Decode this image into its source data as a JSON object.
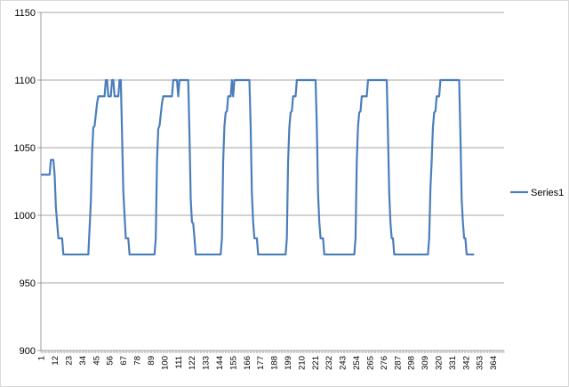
{
  "chart_data": {
    "type": "line",
    "title": "",
    "xlabel": "",
    "ylabel": "",
    "ylim": [
      900,
      1150
    ],
    "yticks": [
      900,
      950,
      1000,
      1050,
      1100,
      1150
    ],
    "xlim": [
      1,
      372
    ],
    "xticks": [
      1,
      12,
      23,
      34,
      45,
      56,
      67,
      78,
      89,
      100,
      111,
      122,
      133,
      144,
      155,
      166,
      177,
      188,
      199,
      210,
      221,
      232,
      243,
      254,
      265,
      276,
      287,
      298,
      309,
      320,
      331,
      342,
      353,
      364
    ],
    "grid": "horizontal",
    "legend": "right",
    "series": [
      {
        "name": "Series1",
        "color": "#4a7ebb",
        "points": [
          [
            1,
            1030
          ],
          [
            8,
            1030
          ],
          [
            9,
            1041
          ],
          [
            11,
            1041
          ],
          [
            12,
            1030
          ],
          [
            13,
            1006
          ],
          [
            15,
            983
          ],
          [
            18,
            983
          ],
          [
            19,
            971
          ],
          [
            36,
            971
          ],
          [
            39,
            971
          ],
          [
            41,
            1010
          ],
          [
            42,
            1046
          ],
          [
            43,
            1065
          ],
          [
            44,
            1066
          ],
          [
            46,
            1083
          ],
          [
            47,
            1088
          ],
          [
            52,
            1088
          ],
          [
            53,
            1100
          ],
          [
            54,
            1100
          ],
          [
            55,
            1088
          ],
          [
            57,
            1088
          ],
          [
            58,
            1100
          ],
          [
            59,
            1100
          ],
          [
            60,
            1088
          ],
          [
            63,
            1088
          ],
          [
            64,
            1100
          ],
          [
            65,
            1100
          ],
          [
            66,
            1060
          ],
          [
            67,
            1018
          ],
          [
            68,
            1000
          ],
          [
            69,
            983
          ],
          [
            71,
            983
          ],
          [
            72,
            971
          ],
          [
            92,
            971
          ],
          [
            93,
            983
          ],
          [
            94,
            1040
          ],
          [
            95,
            1064
          ],
          [
            96,
            1066
          ],
          [
            98,
            1083
          ],
          [
            99,
            1088
          ],
          [
            106,
            1088
          ],
          [
            107,
            1100
          ],
          [
            110,
            1100
          ],
          [
            111,
            1088
          ],
          [
            112,
            1100
          ],
          [
            119,
            1100
          ],
          [
            120,
            1060
          ],
          [
            121,
            1012
          ],
          [
            122,
            995
          ],
          [
            123,
            994
          ],
          [
            124,
            983
          ],
          [
            125,
            971
          ],
          [
            145,
            971
          ],
          [
            146,
            983
          ],
          [
            147,
            1040
          ],
          [
            148,
            1066
          ],
          [
            149,
            1076
          ],
          [
            150,
            1077
          ],
          [
            151,
            1088
          ],
          [
            153,
            1088
          ],
          [
            154,
            1100
          ],
          [
            155,
            1088
          ],
          [
            156,
            1100
          ],
          [
            168,
            1100
          ],
          [
            169,
            1066
          ],
          [
            170,
            1016
          ],
          [
            171,
            995
          ],
          [
            172,
            983
          ],
          [
            174,
            983
          ],
          [
            175,
            971
          ],
          [
            197,
            971
          ],
          [
            198,
            983
          ],
          [
            199,
            1040
          ],
          [
            200,
            1065
          ],
          [
            201,
            1076
          ],
          [
            202,
            1077
          ],
          [
            203,
            1088
          ],
          [
            205,
            1088
          ],
          [
            206,
            1100
          ],
          [
            221,
            1100
          ],
          [
            222,
            1066
          ],
          [
            223,
            1016
          ],
          [
            224,
            995
          ],
          [
            225,
            983
          ],
          [
            227,
            983
          ],
          [
            228,
            971
          ],
          [
            252,
            971
          ],
          [
            253,
            983
          ],
          [
            254,
            1040
          ],
          [
            255,
            1066
          ],
          [
            256,
            1076
          ],
          [
            257,
            1077
          ],
          [
            258,
            1088
          ],
          [
            262,
            1088
          ],
          [
            263,
            1100
          ],
          [
            278,
            1100
          ],
          [
            279,
            1060
          ],
          [
            280,
            1016
          ],
          [
            281,
            994
          ],
          [
            282,
            983
          ],
          [
            283,
            983
          ],
          [
            284,
            971
          ],
          [
            311,
            971
          ],
          [
            312,
            983
          ],
          [
            313,
            1020
          ],
          [
            314,
            1040
          ],
          [
            315,
            1065
          ],
          [
            316,
            1076
          ],
          [
            317,
            1077
          ],
          [
            318,
            1088
          ],
          [
            320,
            1088
          ],
          [
            321,
            1100
          ],
          [
            336,
            1100
          ],
          [
            337,
            1060
          ],
          [
            338,
            1012
          ],
          [
            339,
            995
          ],
          [
            340,
            983
          ],
          [
            341,
            983
          ],
          [
            342,
            971
          ],
          [
            348,
            971
          ]
        ]
      }
    ]
  }
}
